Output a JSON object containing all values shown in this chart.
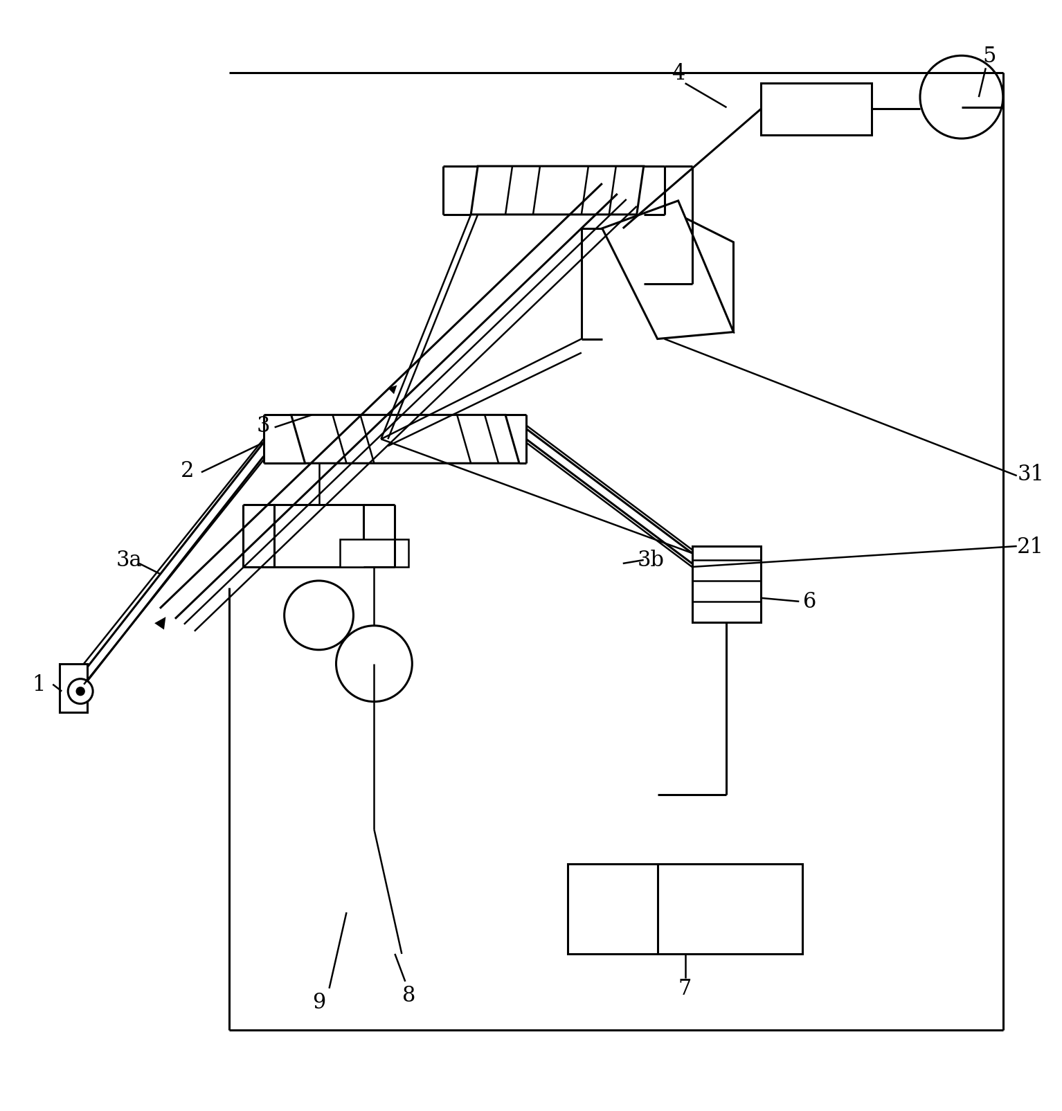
{
  "bg_color": "#ffffff",
  "lc": "#000000",
  "lw": 1.8,
  "lw2": 2.2,
  "fig_w": 15.34,
  "fig_h": 16.06
}
